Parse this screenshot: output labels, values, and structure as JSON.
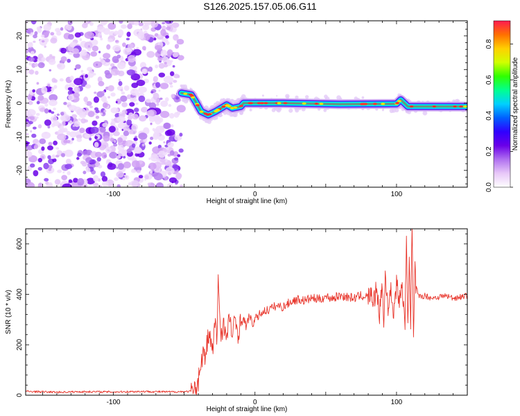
{
  "title": "S126.2025.157.05.06.G11",
  "chart_data": [
    {
      "type": "heatmap",
      "xlabel": "Height of straight line (km)",
      "ylabel": "Frequency (Hz)",
      "xlim": [
        -162,
        150
      ],
      "ylim": [
        -25,
        24.5
      ],
      "xticks": [
        "-100",
        "0",
        "100"
      ],
      "xtick_values": [
        -100,
        0,
        100
      ],
      "yticks": [
        "-20",
        "-10",
        "0",
        "10",
        "20"
      ],
      "ytick_values": [
        -20,
        -10,
        0,
        10,
        20
      ],
      "noise_region": {
        "x": [
          -162,
          -52
        ],
        "y": [
          -25,
          24.5
        ]
      },
      "signal_track": [
        {
          "x": -52,
          "y": 3
        },
        {
          "x": -45,
          "y": 2.5
        },
        {
          "x": -42,
          "y": 0.5
        },
        {
          "x": -38,
          "y": -2.5
        },
        {
          "x": -33,
          "y": -3.5
        },
        {
          "x": -28,
          "y": -2.5
        },
        {
          "x": -24,
          "y": -1.5
        },
        {
          "x": -20,
          "y": -0.5
        },
        {
          "x": -16,
          "y": -1.5
        },
        {
          "x": -10,
          "y": -1
        },
        {
          "x": -8,
          "y": 0
        },
        {
          "x": 20,
          "y": 0
        },
        {
          "x": 60,
          "y": -0.3
        },
        {
          "x": 100,
          "y": -0.2
        },
        {
          "x": 103,
          "y": 1
        },
        {
          "x": 108,
          "y": -1
        },
        {
          "x": 150,
          "y": -1
        }
      ],
      "colorbar": {
        "label": "Normalized spectral amplitude",
        "range": [
          0,
          0.93
        ],
        "ticks": [
          "0.0",
          "0.2",
          "0.4",
          "0.6",
          "0.8"
        ],
        "tick_values": [
          0.0,
          0.2,
          0.4,
          0.6,
          0.8
        ],
        "colors": [
          "#ffffff",
          "#e8c8f8",
          "#b070f0",
          "#6a00e8",
          "#3000ff",
          "#0060ff",
          "#00d0ff",
          "#00ff90",
          "#30ff00",
          "#d0ff00",
          "#ffd000",
          "#ff7000",
          "#ff1a50"
        ]
      }
    },
    {
      "type": "line",
      "xlabel": "Height of straight line (km)",
      "ylabel": "SNR (10 * v/v)",
      "xlim": [
        -162,
        150
      ],
      "ylim": [
        0,
        660
      ],
      "xticks": [
        "-100",
        "0",
        "100"
      ],
      "xtick_values": [
        -100,
        0,
        100
      ],
      "yticks": [
        "0",
        "200",
        "400",
        "600"
      ],
      "ytick_values": [
        0,
        200,
        400,
        600
      ],
      "color": "#e8352b",
      "series": [
        {
          "x": [
            -162,
            -140,
            -120,
            -100,
            -80,
            -60,
            -45,
            -42,
            -40,
            -38,
            -36,
            -35,
            -34,
            -32,
            -30,
            -28,
            -27,
            -26,
            -24,
            -22,
            -20,
            -18,
            -16,
            -14,
            -12,
            -10,
            -8,
            -6,
            -4,
            -2,
            0,
            5,
            10,
            15,
            20,
            25,
            30,
            35,
            40,
            45,
            50,
            55,
            60,
            65,
            70,
            75,
            80,
            82,
            84,
            86,
            88,
            90,
            91,
            92,
            94,
            96,
            98,
            100,
            102,
            104,
            106,
            107,
            108,
            109,
            110,
            111,
            112,
            113,
            114,
            116,
            120,
            125,
            130,
            135,
            140,
            145,
            150
          ],
          "y": [
            15,
            12,
            14,
            13,
            15,
            13,
            15,
            25,
            60,
            130,
            180,
            120,
            210,
            240,
            170,
            300,
            200,
            455,
            240,
            290,
            210,
            320,
            230,
            300,
            250,
            290,
            300,
            270,
            320,
            280,
            300,
            330,
            340,
            355,
            350,
            370,
            380,
            375,
            385,
            380,
            390,
            385,
            395,
            390,
            385,
            395,
            390,
            400,
            370,
            430,
            320,
            450,
            250,
            480,
            350,
            410,
            330,
            440,
            380,
            420,
            300,
            600,
            250,
            580,
            300,
            660,
            210,
            500,
            400,
            390,
            395,
            385,
            390,
            395,
            385,
            390,
            395
          ]
        }
      ]
    }
  ]
}
